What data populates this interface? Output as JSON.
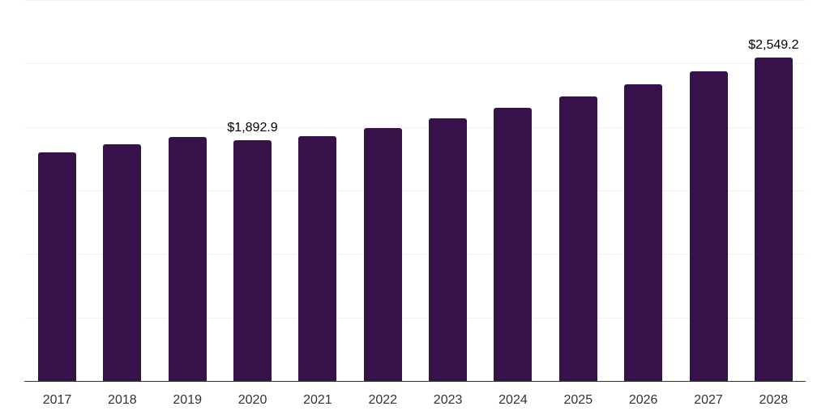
{
  "chart_data": {
    "type": "bar",
    "title": "",
    "xlabel": "",
    "ylabel": "",
    "categories": [
      "2017",
      "2018",
      "2019",
      "2020",
      "2021",
      "2022",
      "2023",
      "2024",
      "2025",
      "2026",
      "2027",
      "2028"
    ],
    "values": [
      1800,
      1864,
      1921,
      1892.9,
      1928,
      1991,
      2068,
      2151,
      2240,
      2336,
      2438,
      2549.2
    ],
    "data_labels": [
      {
        "category": "2020",
        "text": "$1,892.9"
      },
      {
        "category": "2028",
        "text": "$2,549.2"
      }
    ],
    "ylim": [
      0,
      3000
    ],
    "gridlines": [
      0,
      500,
      1000,
      1500,
      2000,
      2500,
      3000
    ],
    "grid": true,
    "y_tick_labels_visible": false,
    "legend": null,
    "bar_color": "#371149"
  },
  "labels": {
    "x": [
      "2017",
      "2018",
      "2019",
      "2020",
      "2021",
      "2022",
      "2023",
      "2024",
      "2025",
      "2026",
      "2027",
      "2028"
    ],
    "value_2020": "$1,892.9",
    "value_2028": "$2,549.2"
  }
}
